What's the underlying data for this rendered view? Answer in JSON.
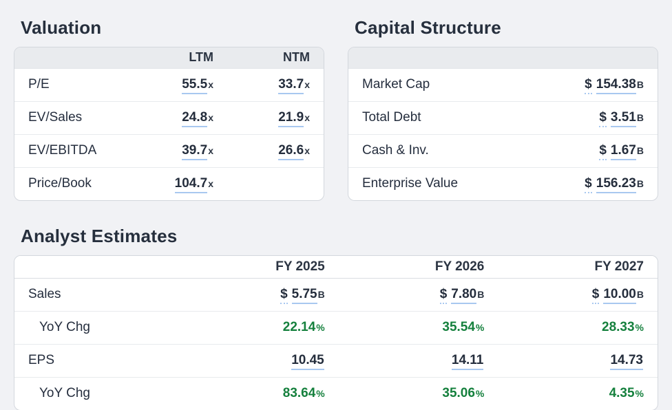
{
  "colors": {
    "page_bg": "#f1f2f5",
    "header_band": "#e9ebee",
    "text": "#252e3e",
    "accent_underline": "#a8c8f0",
    "positive_green": "#15803d"
  },
  "valuation": {
    "title": "Valuation",
    "columns": [
      "LTM",
      "NTM"
    ],
    "rows": [
      {
        "label": "P/E",
        "ltm": "55.5",
        "ltm_suffix": "x",
        "ntm": "33.7",
        "ntm_suffix": "x"
      },
      {
        "label": "EV/Sales",
        "ltm": "24.8",
        "ltm_suffix": "x",
        "ntm": "21.9",
        "ntm_suffix": "x"
      },
      {
        "label": "EV/EBITDA",
        "ltm": "39.7",
        "ltm_suffix": "x",
        "ntm": "26.6",
        "ntm_suffix": "x"
      },
      {
        "label": "Price/Book",
        "ltm": "104.7",
        "ltm_suffix": "x",
        "ntm": "",
        "ntm_suffix": ""
      }
    ]
  },
  "capital_structure": {
    "title": "Capital Structure",
    "rows": [
      {
        "label": "Market Cap",
        "currency": "$",
        "value": "154.38",
        "suffix": "B"
      },
      {
        "label": "Total Debt",
        "currency": "$",
        "value": "3.51",
        "suffix": "B"
      },
      {
        "label": "Cash & Inv.",
        "currency": "$",
        "value": "1.67",
        "suffix": "B"
      },
      {
        "label": "Enterprise Value",
        "currency": "$",
        "value": "156.23",
        "suffix": "B"
      }
    ]
  },
  "analyst_estimates": {
    "title": "Analyst Estimates",
    "columns": [
      "FY 2025",
      "FY 2026",
      "FY 2027"
    ],
    "rows": [
      {
        "label": "Sales",
        "values": [
          {
            "currency": "$",
            "value": "5.75",
            "suffix": "B"
          },
          {
            "currency": "$",
            "value": "7.80",
            "suffix": "B"
          },
          {
            "currency": "$",
            "value": "10.00",
            "suffix": "B"
          }
        ]
      },
      {
        "label": "YoY Chg",
        "values": [
          {
            "value": "22.14",
            "suffix": "%"
          },
          {
            "value": "35.54",
            "suffix": "%"
          },
          {
            "value": "28.33",
            "suffix": "%"
          }
        ]
      },
      {
        "label": "EPS",
        "values": [
          {
            "value": "10.45",
            "suffix": ""
          },
          {
            "value": "14.11",
            "suffix": ""
          },
          {
            "value": "14.73",
            "suffix": ""
          }
        ]
      },
      {
        "label": "YoY Chg",
        "values": [
          {
            "value": "83.64",
            "suffix": "%"
          },
          {
            "value": "35.06",
            "suffix": "%"
          },
          {
            "value": "4.35",
            "suffix": "%"
          }
        ]
      }
    ]
  }
}
